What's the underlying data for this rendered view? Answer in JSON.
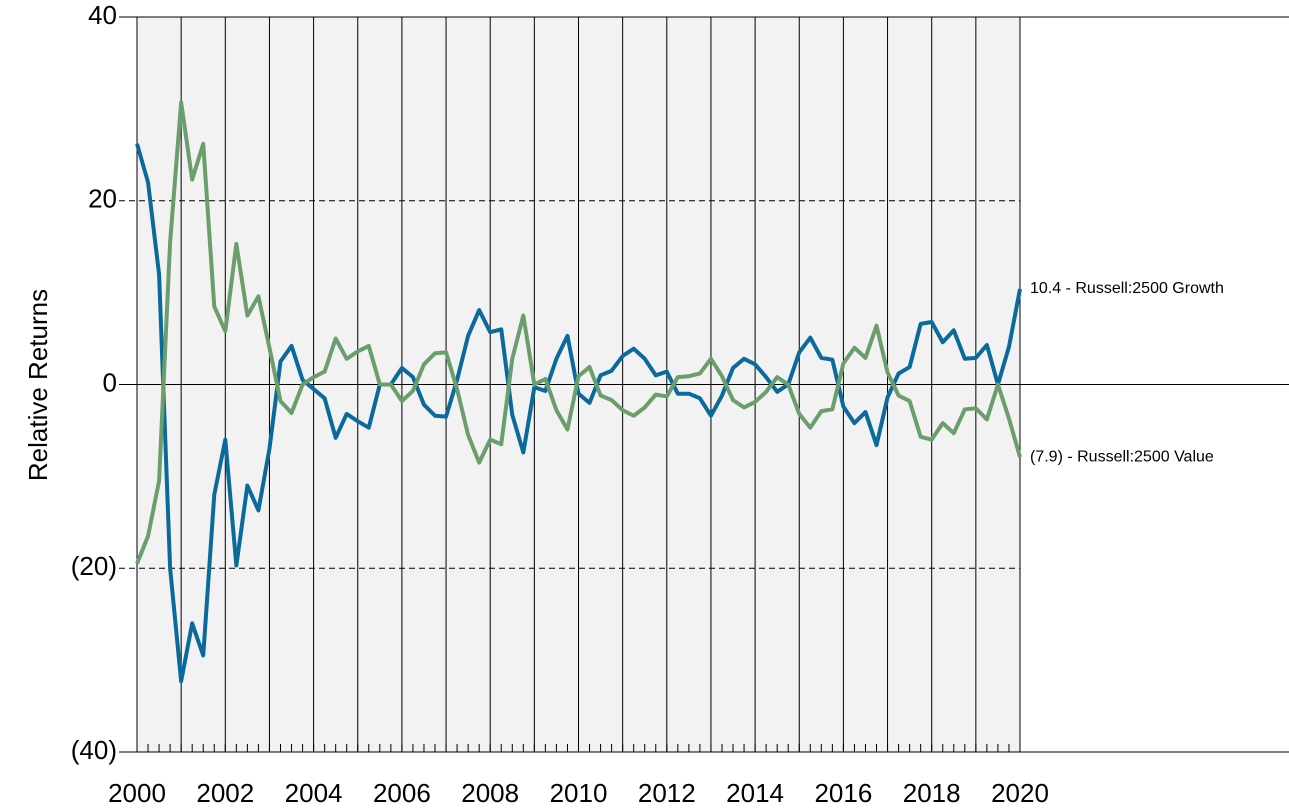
{
  "chart_data": {
    "type": "line",
    "y_label": "Relative Returns",
    "x": [
      2000,
      2000.25,
      2000.5,
      2000.75,
      2001,
      2001.25,
      2001.5,
      2001.75,
      2002,
      2002.25,
      2002.5,
      2002.75,
      2003,
      2003.25,
      2003.5,
      2003.75,
      2004,
      2004.25,
      2004.5,
      2004.75,
      2005,
      2005.25,
      2005.5,
      2005.75,
      2006,
      2006.25,
      2006.5,
      2006.75,
      2007,
      2007.25,
      2007.5,
      2007.75,
      2008,
      2008.25,
      2008.5,
      2008.75,
      2009,
      2009.25,
      2009.5,
      2009.75,
      2010,
      2010.25,
      2010.5,
      2010.75,
      2011,
      2011.25,
      2011.5,
      2011.75,
      2012,
      2012.25,
      2012.5,
      2012.75,
      2013,
      2013.25,
      2013.5,
      2013.75,
      2014,
      2014.25,
      2014.5,
      2014.75,
      2015,
      2015.25,
      2015.5,
      2015.75,
      2016,
      2016.25,
      2016.5,
      2016.75,
      2017,
      2017.25,
      2017.5,
      2017.75,
      2018,
      2018.25,
      2018.5,
      2018.75,
      2019,
      2019.25,
      2019.5,
      2019.75,
      2020
    ],
    "series": [
      {
        "name": "Russell:2500 Growth",
        "end_label": "10.4 - Russell:2500 Growth",
        "color": "#0b6a9c",
        "values": [
          26.2,
          22,
          12,
          -20,
          -32.3,
          -26,
          -29.5,
          -12,
          -6,
          -19.7,
          -11,
          -13.7,
          -7,
          2.5,
          4.2,
          0.5,
          -0.5,
          -1.5,
          -5.8,
          -3.2,
          -4,
          -4.7,
          0,
          0,
          1.8,
          0.8,
          -2.2,
          -3.4,
          -3.5,
          0.5,
          5.3,
          8.1,
          5.7,
          6,
          -3.3,
          -7.4,
          -0.3,
          -0.7,
          2.8,
          5.3,
          -1,
          -2,
          1,
          1.5,
          3.1,
          3.9,
          2.8,
          1,
          1.4,
          -1,
          -1,
          -1.5,
          -3.4,
          -1.2,
          1.8,
          2.8,
          2.2,
          0.8,
          -0.8,
          0,
          3.5,
          5.1,
          2.9,
          2.7,
          -2.4,
          -4.2,
          -3,
          -6.6,
          -1.4,
          1.2,
          1.9,
          6.6,
          6.8,
          4.6,
          5.9,
          2.8,
          2.9,
          4.3,
          0,
          4.1,
          10.4
        ]
      },
      {
        "name": "Russell:2500 Value",
        "end_label": "(7.9) - Russell:2500 Value",
        "color": "#6a9e6c",
        "values": [
          -19.5,
          -16.5,
          -10.5,
          15.5,
          30.7,
          22.3,
          26.2,
          8.5,
          5.8,
          15.3,
          7.5,
          9.6,
          4,
          -1.8,
          -3.1,
          0,
          0.8,
          1.4,
          5,
          2.8,
          3.6,
          4.2,
          0,
          0,
          -1.8,
          -0.7,
          2.2,
          3.4,
          3.5,
          -0.5,
          -5.5,
          -8.5,
          -6,
          -6.5,
          2.8,
          7.5,
          0,
          0.6,
          -2.8,
          -4.9,
          0.9,
          1.9,
          -1.2,
          -1.7,
          -2.8,
          -3.4,
          -2.5,
          -1.1,
          -1.3,
          0.8,
          0.9,
          1.2,
          2.8,
          0.9,
          -1.7,
          -2.5,
          -1.9,
          -0.8,
          0.8,
          0,
          -3.2,
          -4.7,
          -2.9,
          -2.7,
          2.3,
          4,
          2.9,
          6.4,
          1.3,
          -1.2,
          -1.8,
          -5.7,
          -6,
          -4.2,
          -5.3,
          -2.7,
          -2.6,
          -3.8,
          0,
          -3.7,
          -7.9
        ]
      }
    ],
    "xlim": [
      2000,
      2020
    ],
    "xticks": [
      2000,
      2002,
      2004,
      2006,
      2008,
      2010,
      2012,
      2014,
      2016,
      2018,
      2020
    ],
    "x_year_lines": [
      2000,
      2001,
      2002,
      2003,
      2004,
      2005,
      2006,
      2007,
      2008,
      2009,
      2010,
      2011,
      2012,
      2013,
      2014,
      2015,
      2016,
      2017,
      2018,
      2019,
      2020
    ],
    "ylim": [
      -40,
      40
    ],
    "yticks": [
      {
        "value": -40,
        "label": "(40)"
      },
      {
        "value": -20,
        "label": "(20)"
      },
      0,
      20,
      40
    ],
    "negative_tick_color": "#ff0000",
    "plot_background": "#f2f2f2",
    "grid": true
  }
}
